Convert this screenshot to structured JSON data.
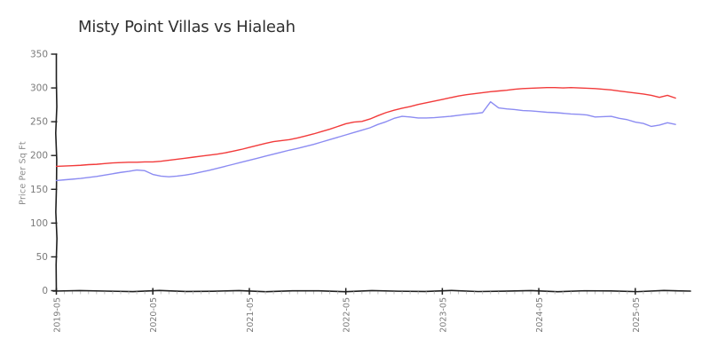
{
  "chart_data": {
    "type": "line",
    "title": "Misty Point Villas vs Hialeah",
    "xlabel": "",
    "ylabel": "Price Per Sq Ft",
    "ylim": [
      0,
      350
    ],
    "y_ticks": [
      0,
      50,
      100,
      150,
      200,
      250,
      300,
      350
    ],
    "x_major_ticks": [
      "2019-05",
      "2020-05",
      "2021-05",
      "2022-05",
      "2023-05",
      "2024-05",
      "2025-05"
    ],
    "grid": false,
    "legend": "none",
    "style": "hand-drawn xkcd-like axes, monthly minor ticks",
    "axis_color": "#1f1f1f",
    "tick_label_color": "#7a7a7a",
    "minor_tick_color": "#c4c4c4",
    "x": [
      "2019-05",
      "2019-06",
      "2019-07",
      "2019-08",
      "2019-09",
      "2019-10",
      "2019-11",
      "2019-12",
      "2020-01",
      "2020-02",
      "2020-03",
      "2020-04",
      "2020-05",
      "2020-06",
      "2020-07",
      "2020-08",
      "2020-09",
      "2020-10",
      "2020-11",
      "2020-12",
      "2021-01",
      "2021-02",
      "2021-03",
      "2021-04",
      "2021-05",
      "2021-06",
      "2021-07",
      "2021-08",
      "2021-09",
      "2021-10",
      "2021-11",
      "2021-12",
      "2022-01",
      "2022-02",
      "2022-03",
      "2022-04",
      "2022-05",
      "2022-06",
      "2022-07",
      "2022-08",
      "2022-09",
      "2022-10",
      "2022-11",
      "2022-12",
      "2023-01",
      "2023-02",
      "2023-03",
      "2023-04",
      "2023-05",
      "2023-06",
      "2023-07",
      "2023-08",
      "2023-09",
      "2023-10",
      "2023-11",
      "2023-12",
      "2024-01",
      "2024-02",
      "2024-03",
      "2024-04",
      "2024-05",
      "2024-06",
      "2024-07",
      "2024-08",
      "2024-09",
      "2024-10",
      "2024-11",
      "2024-12",
      "2025-01",
      "2025-02",
      "2025-03",
      "2025-04",
      "2025-05",
      "2025-06",
      "2025-07",
      "2025-08",
      "2025-09",
      "2025-10"
    ],
    "series": [
      {
        "name": "Misty Point Villas",
        "color": "#f23b3b",
        "values": [
          184,
          184.5,
          185,
          185.5,
          186.5,
          187,
          188,
          189,
          189.5,
          190,
          190,
          190.5,
          190.5,
          191.5,
          193,
          194.5,
          196,
          197.5,
          199,
          200.5,
          202,
          204,
          206.5,
          209,
          212,
          215,
          218,
          220.5,
          222,
          223.5,
          226,
          229,
          232,
          235.5,
          239,
          243,
          247,
          249.5,
          250.5,
          254,
          259,
          263.5,
          267,
          270,
          272.5,
          275.5,
          278,
          280.5,
          283,
          285.5,
          288,
          290,
          291.5,
          293,
          294.5,
          295.5,
          296.5,
          298,
          299,
          299.5,
          300,
          300.5,
          300.5,
          300,
          300.5,
          300,
          299.5,
          299,
          298,
          297,
          295.5,
          294,
          292.5,
          291,
          289,
          286,
          289,
          285
        ]
      },
      {
        "name": "Hialeah",
        "color": "#8c8cf2",
        "values": [
          163,
          164,
          165,
          166,
          167.5,
          169,
          171,
          173,
          175,
          176.5,
          178.5,
          177.5,
          172,
          169.5,
          168.5,
          169.5,
          171,
          173,
          175.5,
          178,
          181,
          184,
          187,
          190,
          193,
          196,
          199,
          202,
          205,
          208,
          210.5,
          213.5,
          216.5,
          220,
          223.5,
          227,
          230.5,
          234,
          237.5,
          241,
          246,
          250,
          255,
          258,
          257,
          255.5,
          255.5,
          256,
          257,
          258,
          259.5,
          261,
          262,
          263.5,
          279.5,
          270.5,
          269,
          268,
          266.5,
          266,
          265,
          264,
          263.5,
          262.5,
          261.5,
          261,
          260,
          257,
          257.5,
          258,
          255,
          253,
          249.5,
          247.5,
          243,
          245,
          248.5,
          246
        ]
      }
    ]
  }
}
